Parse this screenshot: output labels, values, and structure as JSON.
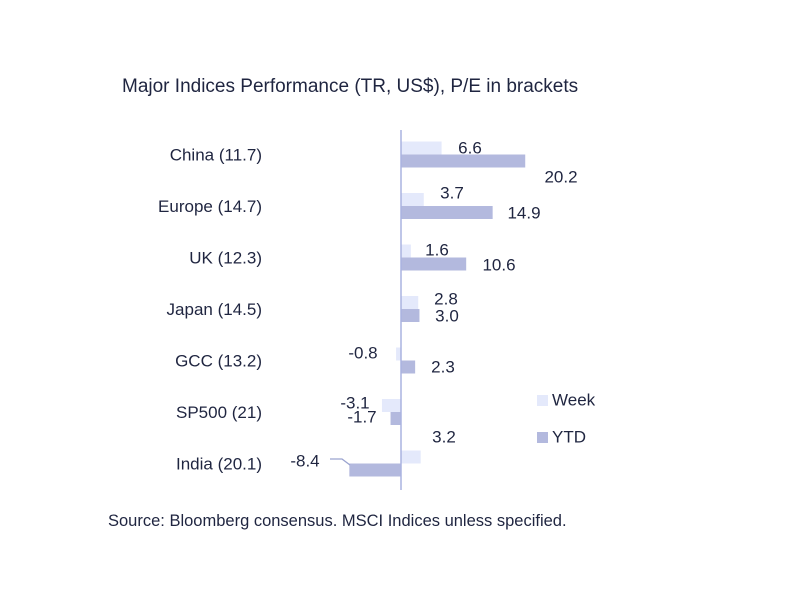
{
  "chart_data": {
    "type": "bar",
    "orientation": "horizontal",
    "title": "Major Indices Performance (TR, US$), P/E in brackets",
    "categories": [
      "China (11.7)",
      "Europe (14.7)",
      "UK (12.3)",
      "Japan (14.5)",
      "GCC (13.2)",
      "SP500 (21)",
      "India (20.1)"
    ],
    "series": [
      {
        "name": "Week",
        "color": "#e4e9fb",
        "values": [
          6.6,
          3.7,
          1.6,
          2.8,
          -0.8,
          -3.1,
          3.2
        ]
      },
      {
        "name": "YTD",
        "color": "#b3b9de",
        "values": [
          20.2,
          14.9,
          10.6,
          3.0,
          2.3,
          -1.7,
          -8.4
        ]
      }
    ],
    "value_labels": {
      "Week": [
        "6.6",
        "3.7",
        "1.6",
        "2.8",
        "-0.8",
        "-3.1",
        "3.2"
      ],
      "YTD": [
        "20.2",
        "14.9",
        "10.6",
        "3.0",
        "2.3",
        "-1.7",
        "-8.4"
      ]
    },
    "legend_position": "right",
    "grid": false,
    "axis_color": "#aab3e0",
    "source": "Source: Bloomberg consensus. MSCI Indices unless specified."
  }
}
